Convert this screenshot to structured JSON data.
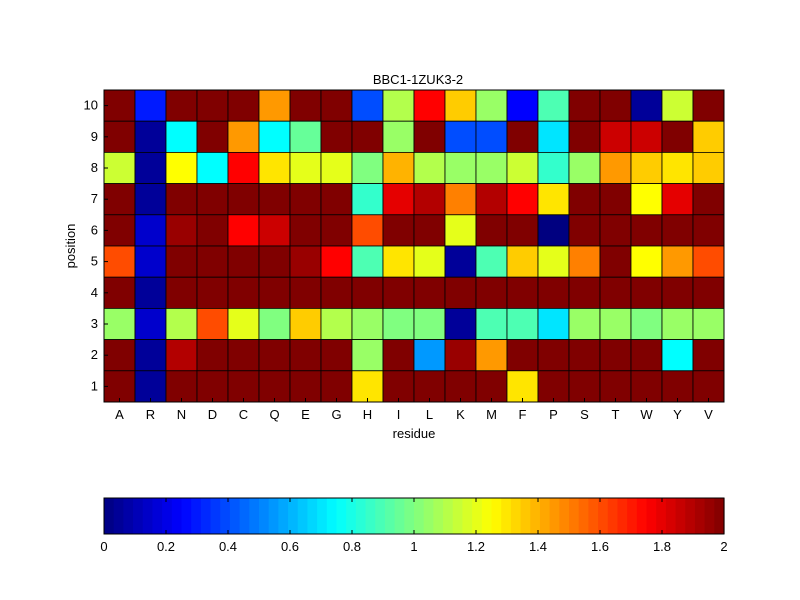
{
  "chart_data": {
    "type": "heatmap",
    "title": "BBC1-1ZUK3-2",
    "xlabel": "residue",
    "ylabel": "position",
    "x_categories": [
      "A",
      "R",
      "N",
      "D",
      "C",
      "Q",
      "E",
      "G",
      "H",
      "I",
      "L",
      "K",
      "M",
      "F",
      "P",
      "S",
      "T",
      "W",
      "Y",
      "V"
    ],
    "y_categories": [
      "10",
      "9",
      "8",
      "7",
      "6",
      "5",
      "4",
      "3",
      "2",
      "1"
    ],
    "values": [
      [
        2.0,
        0.3,
        2.0,
        2.0,
        2.0,
        1.45,
        2.0,
        2.0,
        0.4,
        1.1,
        1.75,
        1.35,
        1.05,
        0.25,
        0.9,
        2.0,
        2.0,
        0.05,
        1.15,
        2.0
      ],
      [
        2.0,
        0.05,
        0.75,
        2.0,
        1.45,
        0.75,
        0.95,
        2.0,
        2.0,
        1.05,
        2.0,
        0.4,
        0.4,
        2.0,
        0.7,
        2.0,
        1.85,
        1.85,
        2.0,
        1.35
      ],
      [
        1.15,
        0.05,
        1.25,
        0.75,
        1.75,
        1.3,
        1.2,
        1.2,
        1.0,
        1.4,
        1.1,
        1.05,
        1.05,
        1.15,
        0.85,
        1.05,
        1.45,
        1.35,
        1.3,
        1.35
      ],
      [
        2.0,
        0.05,
        2.0,
        2.0,
        2.0,
        2.0,
        2.0,
        2.0,
        0.85,
        1.8,
        1.9,
        1.5,
        1.9,
        1.75,
        1.3,
        2.0,
        2.0,
        1.25,
        1.8,
        2.0
      ],
      [
        2.0,
        0.15,
        1.95,
        2.0,
        1.75,
        1.85,
        2.0,
        2.0,
        1.6,
        2.0,
        2.0,
        1.2,
        2.0,
        2.0,
        0.0,
        2.0,
        2.0,
        2.0,
        2.0,
        2.0
      ],
      [
        1.6,
        0.15,
        2.0,
        2.0,
        2.0,
        2.0,
        1.95,
        1.75,
        0.9,
        1.3,
        1.2,
        0.05,
        0.9,
        1.35,
        1.2,
        1.5,
        2.0,
        1.25,
        1.45,
        1.6
      ],
      [
        2.0,
        0.05,
        2.0,
        2.0,
        2.0,
        2.0,
        2.0,
        2.0,
        2.0,
        2.0,
        2.0,
        2.0,
        2.0,
        2.0,
        2.0,
        2.0,
        2.0,
        2.0,
        2.0,
        2.0
      ],
      [
        1.05,
        0.15,
        1.1,
        1.6,
        1.2,
        1.0,
        1.35,
        1.1,
        1.05,
        1.0,
        1.0,
        0.05,
        0.9,
        0.9,
        0.7,
        1.05,
        1.05,
        1.0,
        1.05,
        1.05
      ],
      [
        2.0,
        0.05,
        1.9,
        2.0,
        2.0,
        2.0,
        2.0,
        2.0,
        1.05,
        2.0,
        0.55,
        1.95,
        1.45,
        2.0,
        2.0,
        2.0,
        2.0,
        2.0,
        0.75,
        2.0
      ],
      [
        2.0,
        0.05,
        2.0,
        2.0,
        2.0,
        2.0,
        2.0,
        2.0,
        1.3,
        2.0,
        2.0,
        2.0,
        2.0,
        1.3,
        2.0,
        2.0,
        2.0,
        2.0,
        2.0,
        2.0
      ]
    ],
    "colormap": "jet",
    "clim": [
      0,
      2
    ],
    "colorbar": {
      "orientation": "horizontal",
      "placement": "bottom",
      "ticks": [
        "0",
        "0.2",
        "0.4",
        "0.6",
        "0.8",
        "1",
        "1.2",
        "1.4",
        "1.6",
        "1.8",
        "2"
      ]
    },
    "grid": false
  }
}
